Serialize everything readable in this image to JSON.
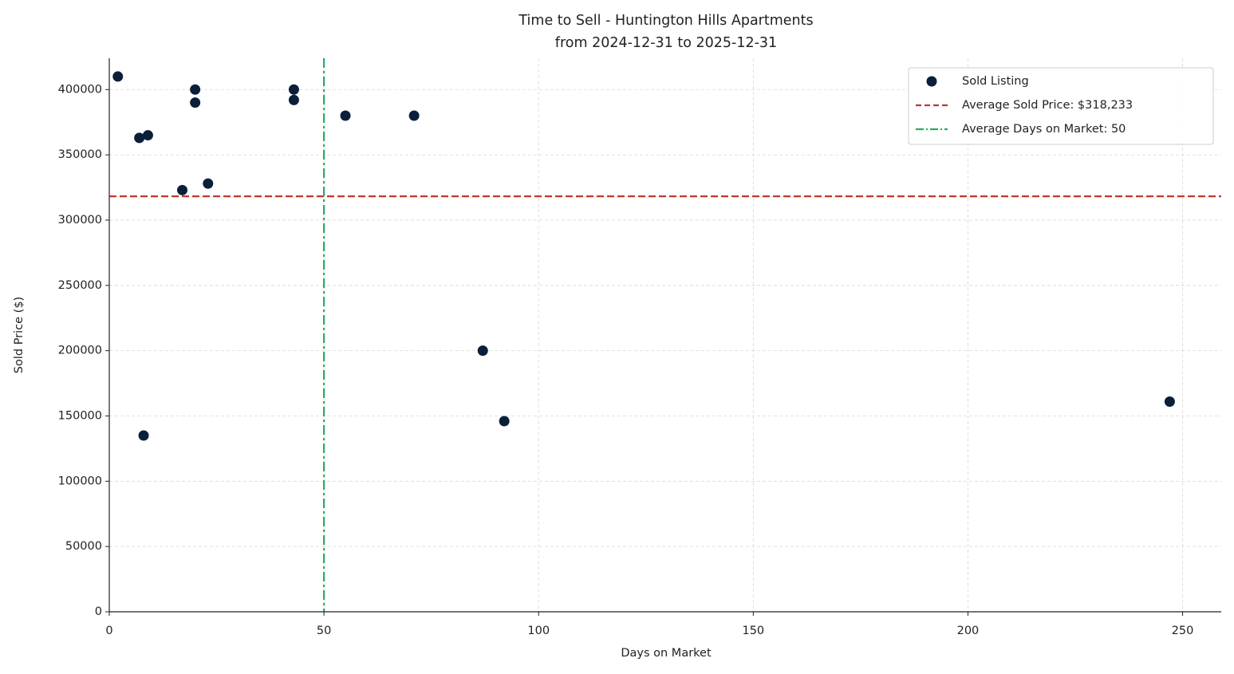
{
  "chart_data": {
    "type": "scatter",
    "title": "Time to Sell - Huntington Hills Apartments",
    "subtitle": "from 2024-12-31 to 2025-12-31",
    "x_label": "Days on Market",
    "y_label": "Sold Price ($)",
    "series": [
      {
        "name": "Sold Listing",
        "color": "#0b1f3a",
        "x": [
          2,
          7,
          9,
          8,
          17,
          20,
          20,
          23,
          43,
          43,
          55,
          71,
          87,
          92,
          247
        ],
        "values": [
          410000,
          363000,
          365000,
          135000,
          323000,
          400000,
          390000,
          328000,
          400000,
          392000,
          380000,
          380000,
          200000,
          146000,
          161000
        ]
      }
    ],
    "reference_lines": [
      {
        "name": "Average Sold Price: $318,233",
        "axis": "y",
        "value": 318233,
        "color": "#c0392b",
        "style": "dashed"
      },
      {
        "name": "Average Days on Market: 50",
        "axis": "x",
        "value": 50,
        "color": "#27ae60",
        "style": "dashdot"
      }
    ],
    "xlim": [
      0,
      259
    ],
    "xticks": [
      0,
      50,
      100,
      150,
      200,
      250
    ],
    "ylim": [
      0,
      424000
    ],
    "yticks": [
      0,
      50000,
      100000,
      150000,
      200000,
      250000,
      300000,
      350000,
      400000
    ],
    "grid": true,
    "legend": "upper right"
  }
}
